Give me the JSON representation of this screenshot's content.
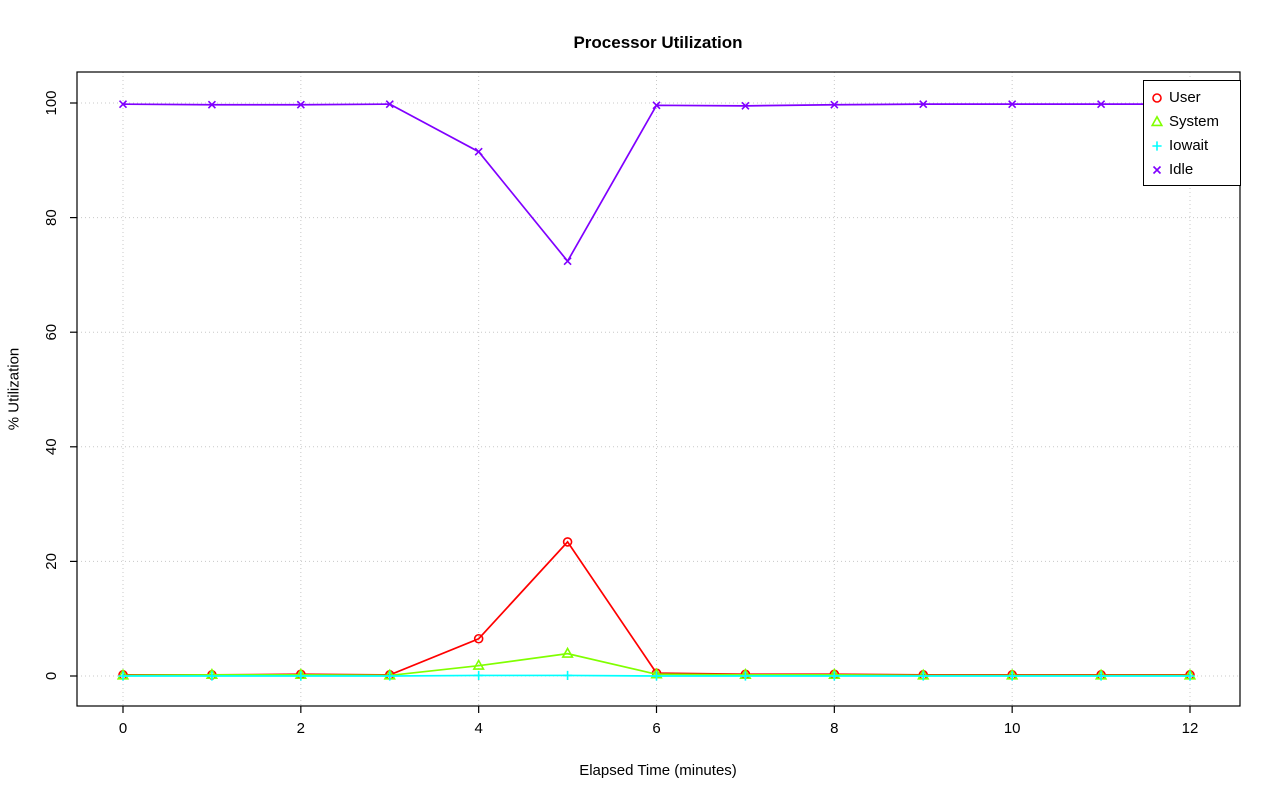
{
  "chart_data": {
    "type": "line",
    "title": "Processor Utilization",
    "xlabel": "Elapsed Time (minutes)",
    "ylabel": "% Utilization",
    "xlim": [
      0,
      12
    ],
    "ylim": [
      0,
      100
    ],
    "xticks": [
      0,
      2,
      4,
      6,
      8,
      10,
      12
    ],
    "yticks": [
      0,
      20,
      40,
      60,
      80,
      100
    ],
    "grid": true,
    "grid_style": "dotted",
    "legend_position": "top-right",
    "x": [
      0,
      1,
      2,
      3,
      4,
      5,
      6,
      7,
      8,
      9,
      10,
      11,
      12
    ],
    "series": [
      {
        "name": "User",
        "color": "#FF0000",
        "marker": "circle",
        "values": [
          0.2,
          0.2,
          0.3,
          0.2,
          6.5,
          23.4,
          0.5,
          0.3,
          0.3,
          0.2,
          0.2,
          0.2,
          0.2
        ]
      },
      {
        "name": "System",
        "color": "#80FF00",
        "marker": "triangle",
        "values": [
          0.1,
          0.2,
          0.2,
          0.1,
          1.8,
          3.9,
          0.3,
          0.2,
          0.2,
          0.1,
          0.1,
          0.1,
          0.1
        ]
      },
      {
        "name": "Iowait",
        "color": "#00FFFF",
        "marker": "plus",
        "values": [
          0,
          0,
          0,
          0,
          0.1,
          0.1,
          0,
          0,
          0,
          0,
          0,
          0,
          0
        ]
      },
      {
        "name": "Idle",
        "color": "#8000FF",
        "marker": "x",
        "values": [
          99.8,
          99.7,
          99.7,
          99.8,
          91.5,
          72.4,
          99.6,
          99.5,
          99.7,
          99.8,
          99.8,
          99.8,
          99.8
        ]
      }
    ]
  }
}
